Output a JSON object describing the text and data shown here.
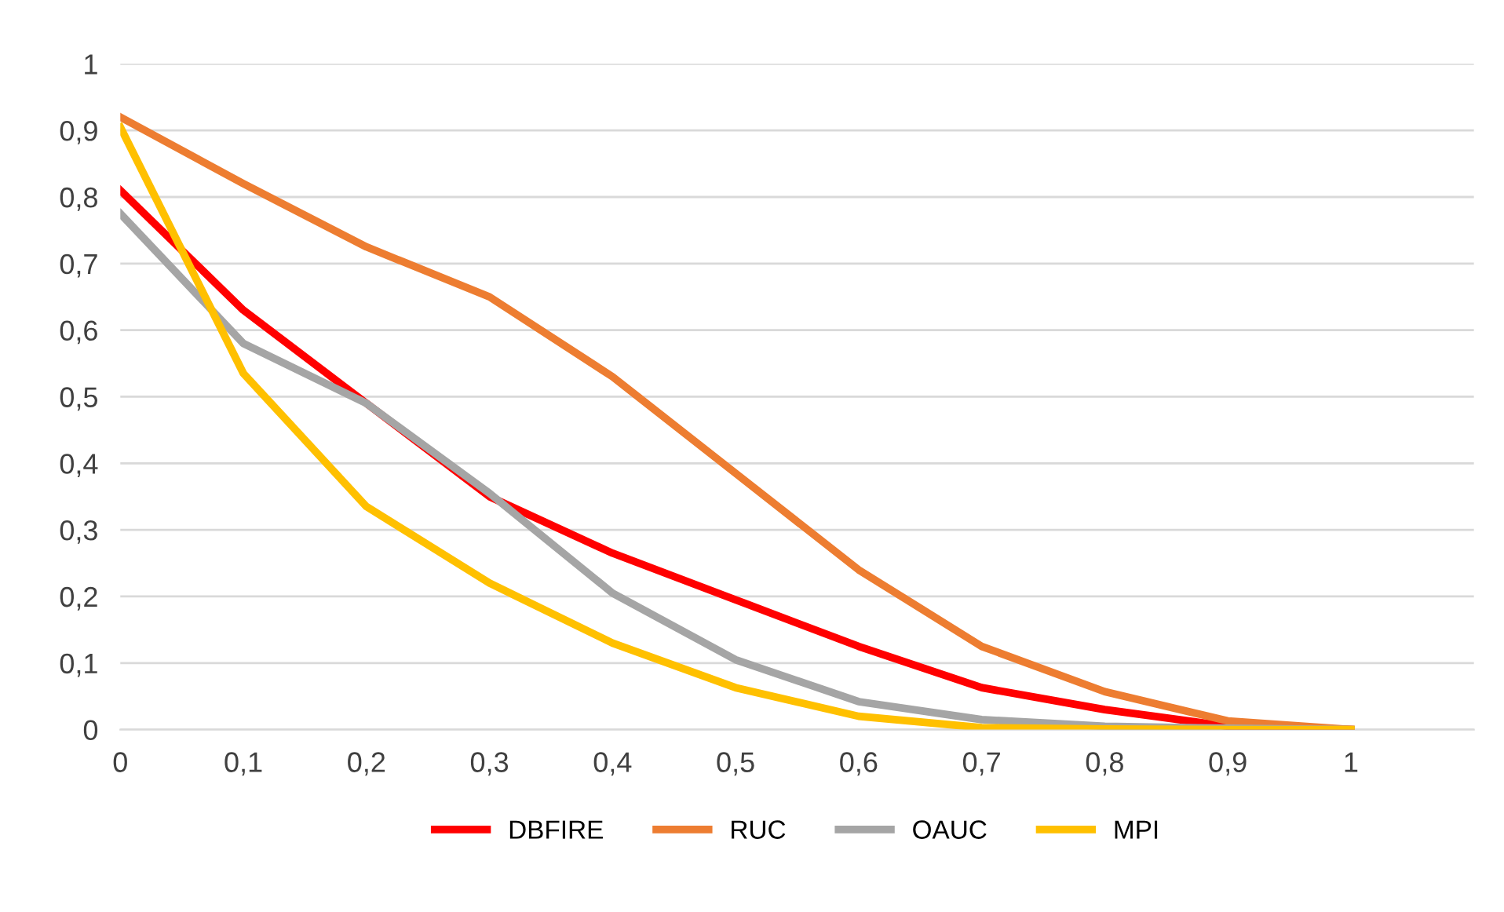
{
  "chart_data": {
    "type": "line",
    "categories": [
      "0",
      "0,1",
      "0,2",
      "0,3",
      "0,4",
      "0,5",
      "0,6",
      "0,7",
      "0,8",
      "0,9",
      "1",
      null
    ],
    "series": [
      {
        "name": "DBFIRE",
        "color": "#ff0000",
        "values": [
          0.81,
          0.63,
          0.49,
          0.35,
          0.265,
          0.195,
          0.125,
          0.063,
          0.03,
          0.005,
          0,
          null
        ]
      },
      {
        "name": "RUC",
        "color": "#ed7d31",
        "values": [
          0.92,
          0.82,
          0.725,
          0.65,
          0.53,
          0.385,
          0.24,
          0.125,
          0.057,
          0.013,
          0,
          null
        ]
      },
      {
        "name": "OAUC",
        "color": "#a5a5a5",
        "values": [
          0.775,
          0.58,
          0.49,
          0.355,
          0.205,
          0.105,
          0.042,
          0.015,
          0.005,
          0.002,
          0,
          null
        ]
      },
      {
        "name": "MPI",
        "color": "#ffc000",
        "values": [
          0.905,
          0.535,
          0.335,
          0.22,
          0.13,
          0.063,
          0.02,
          0.003,
          0.001,
          0,
          0,
          null
        ]
      }
    ],
    "ylim": [
      0,
      1
    ],
    "yticks": [
      0,
      {
        "value": 0.1,
        "label": "0,1"
      },
      {
        "value": 0.2,
        "label": "0,2"
      },
      {
        "value": 0.3,
        "label": "0,3"
      },
      {
        "value": 0.4,
        "label": "0,4"
      },
      {
        "value": 0.5,
        "label": "0,5"
      },
      {
        "value": 0.6,
        "label": "0,6"
      },
      {
        "value": 0.7,
        "label": "0,7"
      },
      {
        "value": 0.8,
        "label": "0,8"
      },
      {
        "value": 0.9,
        "label": "0,9"
      },
      1
    ],
    "grid": "y",
    "legend": "bottom",
    "marker": "none",
    "line_style": "solid"
  }
}
